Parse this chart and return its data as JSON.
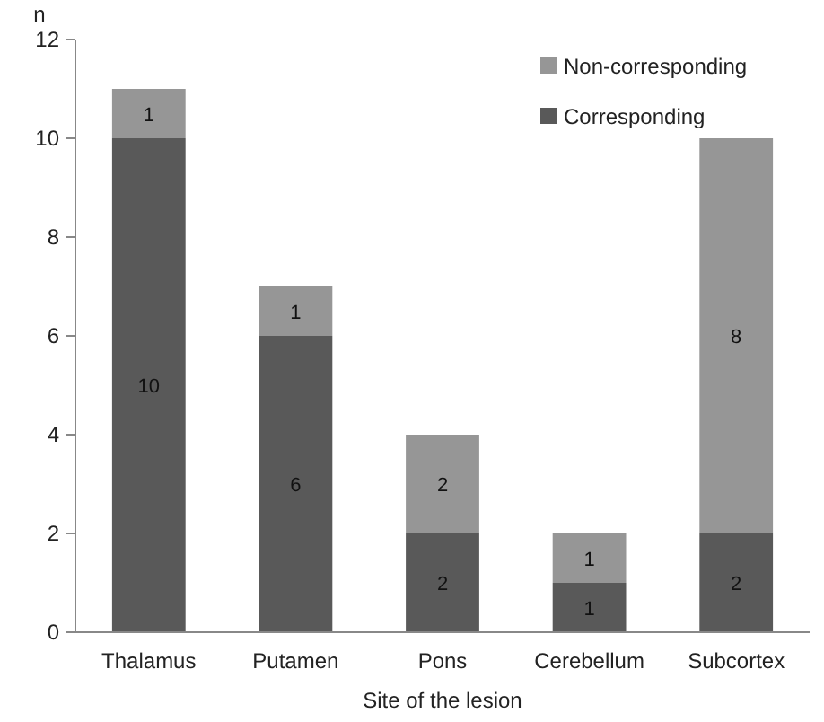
{
  "chart_data": {
    "type": "bar",
    "stacked": true,
    "ylabel": "n",
    "xlabel": "Site of the lesion",
    "categories": [
      "Thalamus",
      "Putamen",
      "Pons",
      "Cerebellum",
      "Subcortex"
    ],
    "series": [
      {
        "name": "Corresponding",
        "color": "#595959",
        "values": [
          10,
          6,
          2,
          1,
          2
        ]
      },
      {
        "name": "Non-corresponding",
        "color": "#969696",
        "values": [
          1,
          1,
          2,
          1,
          8
        ]
      }
    ],
    "ylim": [
      0,
      12
    ],
    "yticks": [
      0,
      2,
      4,
      6,
      8,
      10,
      12
    ],
    "data_labels": true,
    "legend": "top right"
  }
}
